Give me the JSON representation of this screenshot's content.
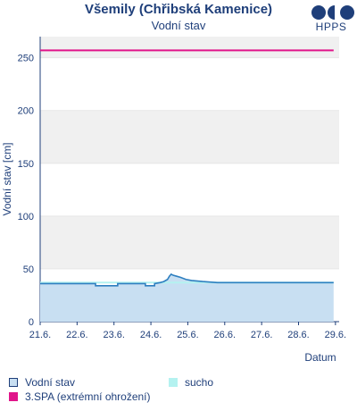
{
  "logo_text": "HPPS",
  "chart_data": {
    "type": "line",
    "title": "Všemily (Chřibská Kamenice)",
    "subtitle": "Vodní stav",
    "xlabel": "Datum",
    "ylabel": "Vodní stav [cm]",
    "x_ticks": [
      "21.6.",
      "22.6.",
      "23.6.",
      "24.6.",
      "25.6.",
      "26.6.",
      "27.6.",
      "28.6.",
      "29.6."
    ],
    "y_ticks": [
      0,
      50,
      100,
      150,
      200,
      250
    ],
    "ylim": [
      0,
      270
    ],
    "xlim": [
      0,
      8.1
    ],
    "grid": "horizontal bands",
    "legend_position": "bottom",
    "series": [
      {
        "name": "Vodní stav",
        "color": "#2e7fc0",
        "fill": "#c8dff2",
        "x": [
          0,
          1.5,
          1.5,
          2.1,
          2.1,
          2.85,
          2.85,
          3.1,
          3.1,
          3.25,
          3.35,
          3.45,
          3.5,
          3.55,
          3.6,
          3.7,
          3.8,
          3.95,
          4.1,
          4.4,
          4.8,
          5.3,
          5.8,
          6.5,
          7.2,
          7.8,
          7.95
        ],
        "values": [
          36,
          36,
          34,
          34,
          36,
          36,
          34,
          34,
          36,
          37,
          38,
          40,
          43,
          45,
          44,
          43,
          42,
          40,
          39,
          38,
          37,
          37,
          37,
          37,
          37,
          37,
          37
        ]
      },
      {
        "name": "sucho",
        "color": "#b4f2f0",
        "x": [
          0,
          7.95
        ],
        "values": [
          37,
          37
        ]
      },
      {
        "name": "3.SPA (extrémní ohrožení)",
        "color": "#e0158a",
        "x": [
          0,
          7.95
        ],
        "values": [
          257,
          257
        ]
      }
    ]
  }
}
